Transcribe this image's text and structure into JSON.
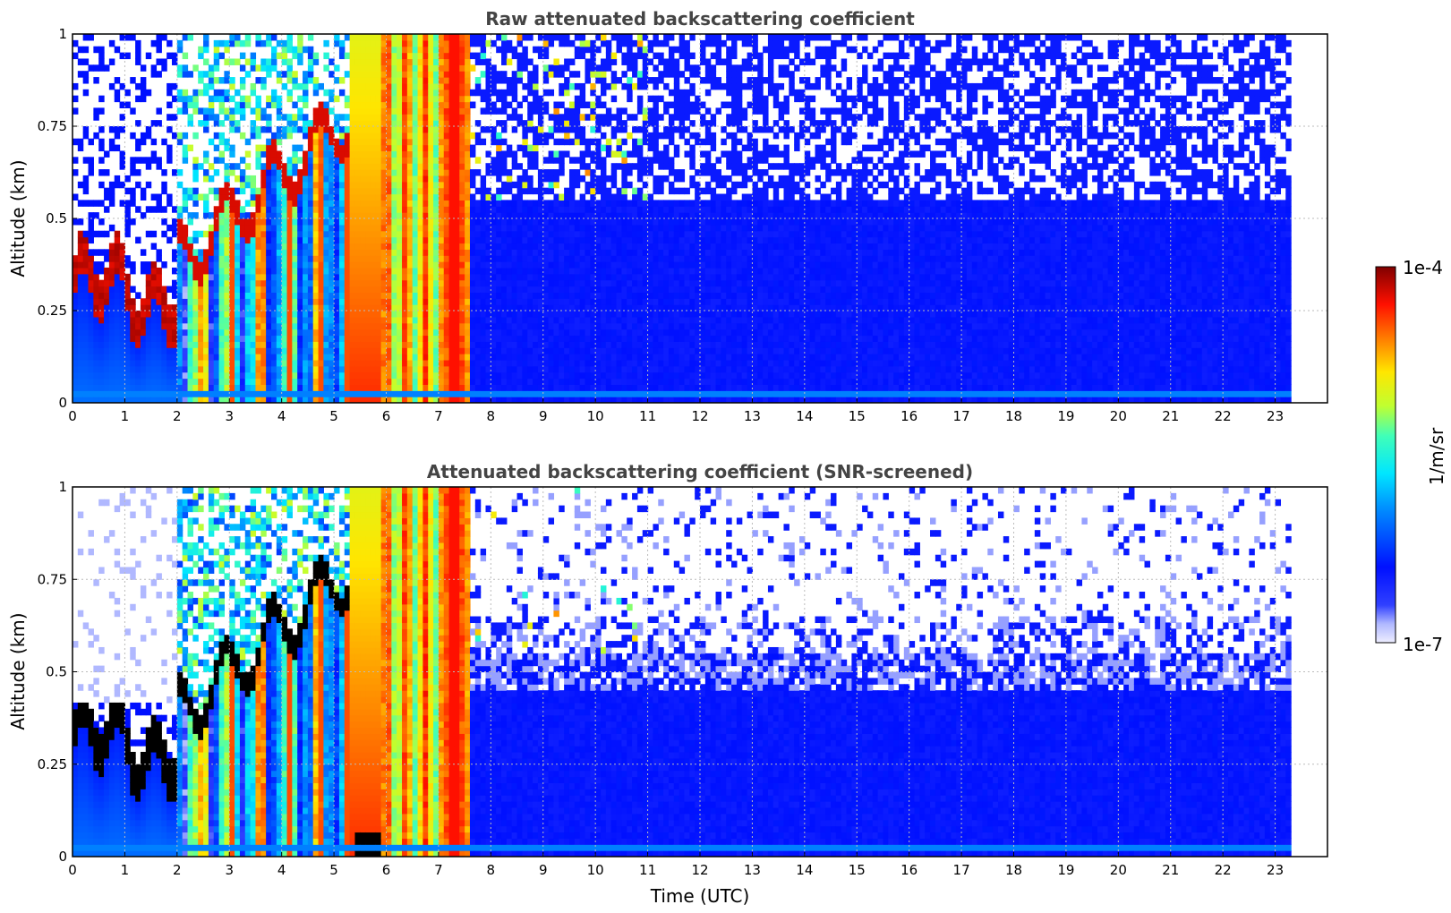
{
  "chart_data": [
    {
      "type": "heatmap",
      "title": "Raw attenuated backscattering coefficient",
      "xlabel": "",
      "ylabel": "Altitude (km)",
      "xlim": [
        0,
        24
      ],
      "ylim": [
        0,
        1
      ],
      "x_ticks": [
        "0",
        "1",
        "2",
        "3",
        "4",
        "5",
        "6",
        "7",
        "8",
        "9",
        "10",
        "11",
        "12",
        "13",
        "14",
        "15",
        "16",
        "17",
        "18",
        "19",
        "20",
        "21",
        "22",
        "23"
      ],
      "y_ticks": [
        "0",
        "0.25",
        "0.5",
        "0.75",
        "1"
      ],
      "grid": true,
      "data_x_end": 23.3,
      "screened": false,
      "features": [
        {
          "name": "boundary layer / low cloud",
          "x": [
            0,
            2
          ],
          "y": [
            0.2,
            0.45
          ]
        },
        {
          "name": "thick layer",
          "x": [
            5.3,
            7.5
          ],
          "y": [
            0,
            1
          ]
        }
      ]
    },
    {
      "type": "heatmap",
      "title": "Attenuated backscattering coefficient (SNR-screened)",
      "xlabel": "Time (UTC)",
      "ylabel": "Altitude (km)",
      "xlim": [
        0,
        24
      ],
      "ylim": [
        0,
        1
      ],
      "x_ticks": [
        "0",
        "1",
        "2",
        "3",
        "4",
        "5",
        "6",
        "7",
        "8",
        "9",
        "10",
        "11",
        "12",
        "13",
        "14",
        "15",
        "16",
        "17",
        "18",
        "19",
        "20",
        "21",
        "22",
        "23"
      ],
      "y_ticks": [
        "0",
        "0.25",
        "0.5",
        "0.75",
        "1"
      ],
      "grid": true,
      "data_x_end": 23.3,
      "screened": true
    }
  ],
  "colorbar": {
    "label": "1/m/sr",
    "max_label": "1e-4",
    "min_label": "1e-7",
    "colormap": "jet"
  },
  "colors": {
    "title": "#444444",
    "grid": "#bbbbbb",
    "low": "#0a1aff",
    "high": "#8b0000"
  }
}
